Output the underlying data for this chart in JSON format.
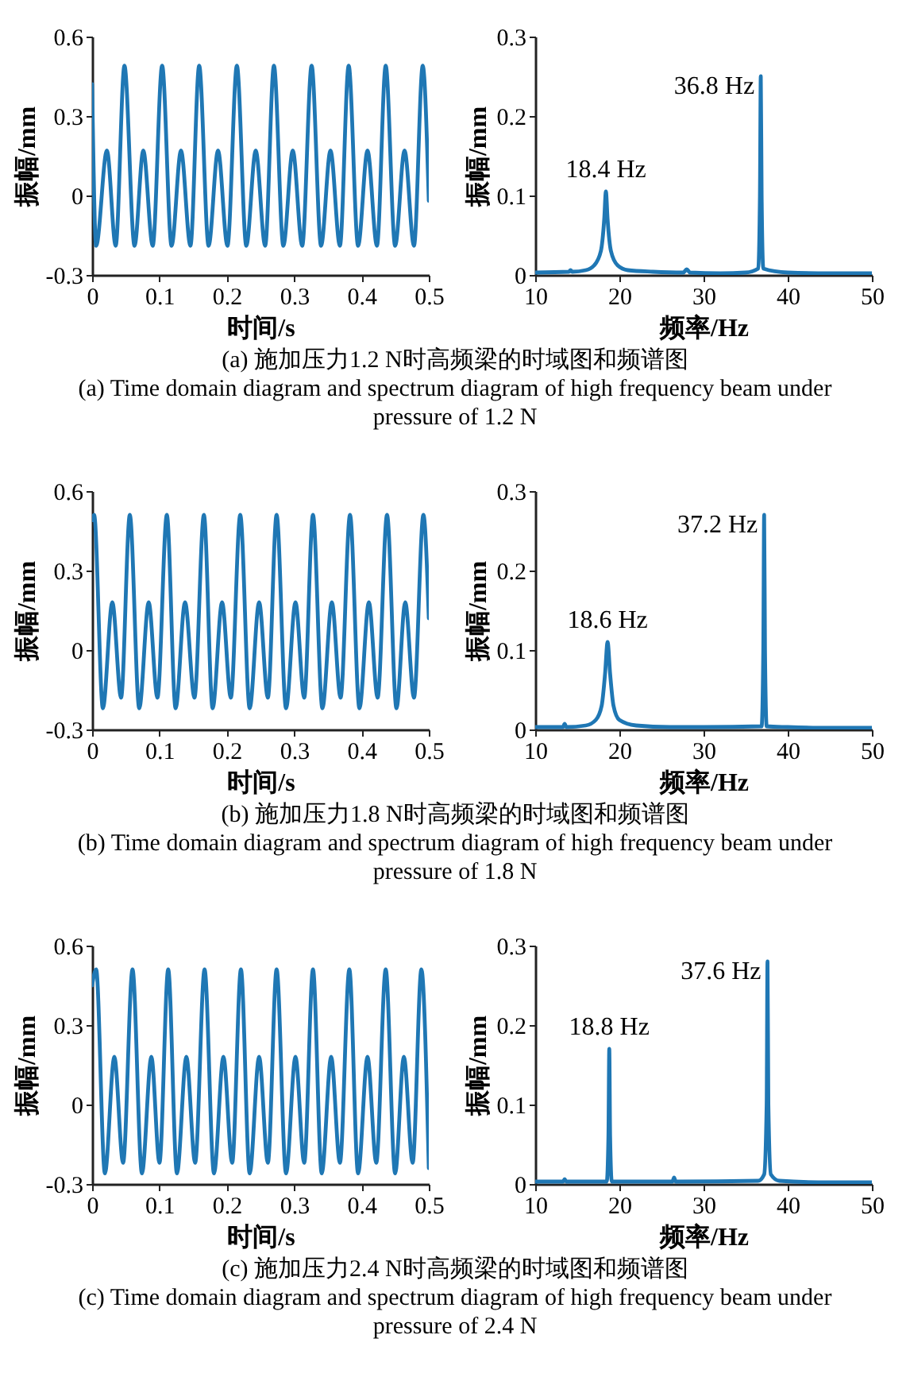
{
  "chart_data": [
    {
      "type": "line",
      "xlabel": "时间/s",
      "ylabel": "振幅/mm",
      "xlim": [
        0,
        0.5
      ],
      "ylim": [
        -0.3,
        0.6
      ],
      "xticks": [
        0,
        0.1,
        0.2,
        0.3,
        0.4,
        0.5
      ],
      "yticks": [
        -0.3,
        0,
        0.3,
        0.6
      ],
      "annotations": [
        "(a) 施加压力1.2 N时高频梁的时域图和频谱图",
        "(a) Time domain diagram and spectrum diagram of high frequency beam under pressure of 1.2 N"
      ],
      "x": [
        0,
        0.006,
        0.022,
        0.035,
        0.048,
        0.063,
        0.076,
        0.09,
        0.104,
        0.118,
        0.132,
        0.146,
        0.159,
        0.173,
        0.187,
        0.201,
        0.215,
        0.229,
        0.243,
        0.257,
        0.27,
        0.284,
        0.298,
        0.312,
        0.326,
        0.34,
        0.354,
        0.368,
        0.381,
        0.395,
        0.409,
        0.423,
        0.436,
        0.45,
        0.464,
        0.478,
        0.491,
        0.5
      ],
      "series": [
        {
          "color": "#1f77b4",
          "values": [
            0.42,
            -0.19,
            0.17,
            -0.19,
            0.49,
            -0.19,
            0.17,
            -0.19,
            0.49,
            -0.19,
            0.17,
            -0.19,
            0.49,
            -0.19,
            0.17,
            -0.19,
            0.49,
            -0.19,
            0.17,
            -0.19,
            0.49,
            -0.19,
            0.17,
            -0.19,
            0.49,
            -0.19,
            0.17,
            -0.19,
            0.49,
            -0.19,
            0.17,
            -0.19,
            0.49,
            -0.19,
            0.17,
            -0.19,
            0.49,
            -0.02
          ]
        }
      ]
    },
    {
      "type": "line",
      "xlabel": "频率/Hz",
      "ylabel": "振幅/mm",
      "xlim": [
        10,
        50
      ],
      "ylim": [
        0,
        0.3
      ],
      "xticks": [
        10,
        20,
        30,
        40,
        50
      ],
      "yticks": [
        0,
        0.1,
        0.2,
        0.3
      ],
      "annotations": [
        {
          "text": "18.4 Hz",
          "x": 18.4,
          "y": 0.105
        },
        {
          "text": "36.8 Hz",
          "x": 36.8,
          "y": 0.25
        }
      ],
      "x": [
        10,
        14,
        14.2,
        14.4,
        16,
        17,
        17.8,
        18.2,
        18.4,
        18.6,
        19,
        19.8,
        21,
        24,
        27.6,
        28,
        28.4,
        32,
        35,
        36.5,
        36.7,
        36.8,
        36.9,
        37.1,
        40,
        45,
        50
      ],
      "series": [
        {
          "color": "#1f77b4",
          "values": [
            0.003,
            0.004,
            0.006,
            0.004,
            0.006,
            0.012,
            0.03,
            0.07,
            0.105,
            0.07,
            0.03,
            0.012,
            0.006,
            0.004,
            0.003,
            0.007,
            0.003,
            0.002,
            0.003,
            0.008,
            0.1,
            0.25,
            0.1,
            0.008,
            0.003,
            0.002,
            0.002
          ]
        }
      ]
    },
    {
      "type": "line",
      "xlabel": "时间/s",
      "ylabel": "振幅/mm",
      "xlim": [
        0,
        0.5
      ],
      "ylim": [
        -0.3,
        0.6
      ],
      "xticks": [
        0,
        0.1,
        0.2,
        0.3,
        0.4,
        0.5
      ],
      "yticks": [
        -0.3,
        0,
        0.3,
        0.6
      ],
      "annotations": [
        "(b) 施加压力1.8 N时高频梁的时域图和频谱图",
        "(b) Time domain diagram and spectrum diagram of high frequency beam under pressure of 1.8 N"
      ],
      "x": [
        0,
        0.003,
        0.016,
        0.03,
        0.043,
        0.056,
        0.07,
        0.084,
        0.097,
        0.111,
        0.124,
        0.138,
        0.152,
        0.166,
        0.179,
        0.193,
        0.206,
        0.22,
        0.234,
        0.248,
        0.261,
        0.274,
        0.288,
        0.302,
        0.315,
        0.328,
        0.342,
        0.356,
        0.369,
        0.383,
        0.397,
        0.411,
        0.424,
        0.438,
        0.452,
        0.465,
        0.478,
        0.492,
        0.5
      ],
      "series": [
        {
          "color": "#1f77b4",
          "values": [
            0.49,
            0.51,
            -0.22,
            0.18,
            -0.18,
            0.51,
            -0.22,
            0.18,
            -0.18,
            0.51,
            -0.22,
            0.18,
            -0.18,
            0.51,
            -0.22,
            0.18,
            -0.18,
            0.51,
            -0.22,
            0.18,
            -0.18,
            0.51,
            -0.22,
            0.18,
            -0.18,
            0.51,
            -0.22,
            0.18,
            -0.18,
            0.51,
            -0.22,
            0.18,
            -0.18,
            0.51,
            -0.22,
            0.18,
            -0.18,
            0.51,
            0.12
          ]
        }
      ]
    },
    {
      "type": "line",
      "xlabel": "频率/Hz",
      "ylabel": "振幅/mm",
      "xlim": [
        10,
        50
      ],
      "ylim": [
        0,
        0.3
      ],
      "xticks": [
        10,
        20,
        30,
        40,
        50
      ],
      "yticks": [
        0,
        0.1,
        0.2,
        0.3
      ],
      "annotations": [
        {
          "text": "18.6 Hz",
          "x": 18.6,
          "y": 0.11
        },
        {
          "text": "37.2 Hz",
          "x": 37.2,
          "y": 0.27
        }
      ],
      "x": [
        10,
        13.3,
        13.5,
        13.7,
        16,
        17.2,
        17.9,
        18.3,
        18.6,
        18.9,
        19.3,
        20,
        22,
        26,
        30,
        36.9,
        37.1,
        37.2,
        37.3,
        37.5,
        40,
        45,
        50
      ],
      "series": [
        {
          "color": "#1f77b4",
          "values": [
            0.003,
            0.003,
            0.007,
            0.003,
            0.005,
            0.012,
            0.03,
            0.07,
            0.11,
            0.07,
            0.03,
            0.012,
            0.005,
            0.003,
            0.003,
            0.004,
            0.1,
            0.27,
            0.1,
            0.004,
            0.003,
            0.002,
            0.002
          ]
        }
      ]
    },
    {
      "type": "line",
      "xlabel": "时间/s",
      "ylabel": "振幅/mm",
      "xlim": [
        0,
        0.5
      ],
      "ylim": [
        -0.3,
        0.6
      ],
      "xticks": [
        0,
        0.1,
        0.2,
        0.3,
        0.4,
        0.5
      ],
      "yticks": [
        -0.3,
        0,
        0.3,
        0.6
      ],
      "annotations": [
        "(c) 施加压力2.4 N时高频梁的时域图和频谱图",
        "(c) Time domain diagram and spectrum diagram of high frequency beam under pressure of 2.4 N"
      ],
      "x": [
        0,
        0.006,
        0.019,
        0.033,
        0.046,
        0.06,
        0.074,
        0.088,
        0.1,
        0.113,
        0.126,
        0.14,
        0.153,
        0.167,
        0.181,
        0.195,
        0.208,
        0.221,
        0.234,
        0.248,
        0.261,
        0.274,
        0.288,
        0.302,
        0.315,
        0.328,
        0.341,
        0.355,
        0.368,
        0.382,
        0.395,
        0.409,
        0.422,
        0.436,
        0.45,
        0.463,
        0.476,
        0.489,
        0.5
      ],
      "series": [
        {
          "color": "#1f77b4",
          "values": [
            0.45,
            0.51,
            -0.26,
            0.18,
            -0.22,
            0.51,
            -0.26,
            0.18,
            -0.22,
            0.51,
            -0.26,
            0.18,
            -0.22,
            0.51,
            -0.26,
            0.18,
            -0.22,
            0.51,
            -0.26,
            0.18,
            -0.22,
            0.51,
            -0.26,
            0.18,
            -0.22,
            0.51,
            -0.26,
            0.18,
            -0.22,
            0.51,
            -0.26,
            0.18,
            -0.22,
            0.51,
            -0.26,
            0.18,
            -0.22,
            0.51,
            -0.24
          ]
        }
      ]
    },
    {
      "type": "line",
      "xlabel": "频率/Hz",
      "ylabel": "振幅/mm",
      "xlim": [
        10,
        50
      ],
      "ylim": [
        0,
        0.3
      ],
      "xticks": [
        10,
        20,
        30,
        40,
        50
      ],
      "yticks": [
        0,
        0.1,
        0.2,
        0.3
      ],
      "annotations": [
        {
          "text": "18.8 Hz",
          "x": 18.8,
          "y": 0.17
        },
        {
          "text": "37.6 Hz",
          "x": 37.6,
          "y": 0.28
        }
      ],
      "x": [
        10,
        13.3,
        13.5,
        13.7,
        18.5,
        18.7,
        18.8,
        18.9,
        19.1,
        26.3,
        26.5,
        26.7,
        36.5,
        37.2,
        37.5,
        37.6,
        37.7,
        38,
        39,
        45,
        50
      ],
      "series": [
        {
          "color": "#1f77b4",
          "values": [
            0.003,
            0.003,
            0.006,
            0.003,
            0.003,
            0.06,
            0.17,
            0.06,
            0.003,
            0.003,
            0.008,
            0.003,
            0.004,
            0.012,
            0.1,
            0.28,
            0.1,
            0.012,
            0.004,
            0.002,
            0.002
          ]
        }
      ]
    }
  ]
}
